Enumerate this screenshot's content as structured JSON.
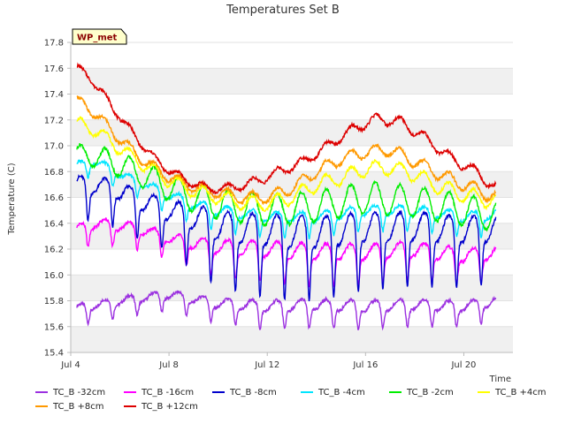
{
  "chart_data": {
    "type": "line",
    "title": "Temperatures Set B",
    "xlabel": "Time",
    "ylabel": "Temperature (C)",
    "station_label": "WP_met",
    "xlim": [
      4,
      22
    ],
    "ylim": [
      15.4,
      17.8
    ],
    "x_ticks": [
      {
        "value": 4,
        "label": "Jul 4"
      },
      {
        "value": 8,
        "label": "Jul 8"
      },
      {
        "value": 12,
        "label": "Jul 12"
      },
      {
        "value": 16,
        "label": "Jul 16"
      },
      {
        "value": 20,
        "label": "Jul 20"
      }
    ],
    "y_ticks": [
      15.4,
      15.6,
      15.8,
      16.0,
      16.2,
      16.4,
      16.6,
      16.8,
      17.0,
      17.2,
      17.4,
      17.6,
      17.8
    ],
    "x_start": 4.25,
    "x_end": 21.3,
    "series": [
      {
        "name": "TC_B -32cm",
        "color": "#9b30e0",
        "base": [
          [
            4.25,
            15.74
          ],
          [
            6,
            15.8
          ],
          [
            8,
            15.85
          ],
          [
            10,
            15.78
          ],
          [
            12,
            15.76
          ],
          [
            14,
            15.77
          ],
          [
            16,
            15.76
          ],
          [
            18,
            15.77
          ],
          [
            20,
            15.76
          ],
          [
            21.3,
            15.8
          ]
        ],
        "amp": [
          [
            4.25,
            0.12
          ],
          [
            8,
            0.12
          ],
          [
            12,
            0.17
          ],
          [
            16,
            0.17
          ],
          [
            21.3,
            0.14
          ]
        ]
      },
      {
        "name": "TC_B -16cm",
        "color": "#ff00ff",
        "base": [
          [
            4.25,
            16.35
          ],
          [
            5,
            16.4
          ],
          [
            6,
            16.38
          ],
          [
            7,
            16.35
          ],
          [
            8,
            16.28
          ],
          [
            10,
            16.22
          ],
          [
            12,
            16.2
          ],
          [
            14,
            16.18
          ],
          [
            16,
            16.18
          ],
          [
            18,
            16.2
          ],
          [
            20,
            16.15
          ],
          [
            21.3,
            16.17
          ]
        ],
        "amp": [
          [
            4.25,
            0.15
          ],
          [
            8,
            0.15
          ],
          [
            10,
            0.22
          ],
          [
            14,
            0.25
          ],
          [
            21.3,
            0.2
          ]
        ]
      },
      {
        "name": "TC_B -8cm",
        "color": "#0000cc",
        "base": [
          [
            4.25,
            16.7
          ],
          [
            5,
            16.7
          ],
          [
            6,
            16.65
          ],
          [
            7,
            16.57
          ],
          [
            8,
            16.5
          ],
          [
            9,
            16.45
          ],
          [
            10,
            16.38
          ],
          [
            12,
            16.35
          ],
          [
            14,
            16.33
          ],
          [
            16,
            16.37
          ],
          [
            18,
            16.38
          ],
          [
            20,
            16.35
          ],
          [
            21.3,
            16.36
          ]
        ],
        "amp": [
          [
            4.25,
            0.25
          ],
          [
            8,
            0.3
          ],
          [
            10,
            0.45
          ],
          [
            13,
            0.5
          ],
          [
            16,
            0.45
          ],
          [
            21.3,
            0.4
          ]
        ]
      },
      {
        "name": "TC_B -4cm",
        "color": "#00e5ff",
        "base": [
          [
            4.25,
            16.85
          ],
          [
            5,
            16.88
          ],
          [
            6,
            16.78
          ],
          [
            7,
            16.7
          ],
          [
            8,
            16.62
          ],
          [
            9,
            16.55
          ],
          [
            10,
            16.5
          ],
          [
            12,
            16.45
          ],
          [
            14,
            16.45
          ],
          [
            16,
            16.5
          ],
          [
            18,
            16.5
          ],
          [
            20,
            16.45
          ],
          [
            21.3,
            16.47
          ]
        ],
        "amp": [
          [
            4.25,
            0.1
          ],
          [
            10,
            0.15
          ],
          [
            21.3,
            0.15
          ]
        ]
      },
      {
        "name": "TC_B -2cm",
        "color": "#00ee00",
        "base": [
          [
            4.25,
            16.93
          ],
          [
            5,
            16.92
          ],
          [
            6,
            16.85
          ],
          [
            7,
            16.77
          ],
          [
            8,
            16.68
          ],
          [
            9,
            16.6
          ],
          [
            10,
            16.55
          ],
          [
            12,
            16.5
          ],
          [
            14,
            16.53
          ],
          [
            16,
            16.6
          ],
          [
            18,
            16.57
          ],
          [
            20,
            16.5
          ],
          [
            21.3,
            16.46
          ]
        ],
        "amp": [
          [
            4.25,
            0.08
          ],
          [
            10,
            0.12
          ],
          [
            21.3,
            0.12
          ]
        ]
      },
      {
        "name": "TC_B +4cm",
        "color": "#ffff00",
        "base": [
          [
            4.25,
            17.17
          ],
          [
            5,
            17.12
          ],
          [
            6,
            16.98
          ],
          [
            7,
            16.85
          ],
          [
            8,
            16.73
          ],
          [
            9,
            16.65
          ],
          [
            10,
            16.6
          ],
          [
            11,
            16.56
          ],
          [
            12,
            16.55
          ],
          [
            13,
            16.6
          ],
          [
            14,
            16.7
          ],
          [
            15,
            16.75
          ],
          [
            16,
            16.82
          ],
          [
            17,
            16.83
          ],
          [
            18,
            16.78
          ],
          [
            19,
            16.68
          ],
          [
            20,
            16.62
          ],
          [
            21.3,
            16.57
          ]
        ],
        "amp": [
          [
            4.25,
            0.05
          ],
          [
            21.3,
            0.06
          ]
        ]
      },
      {
        "name": "TC_B +8cm",
        "color": "#ff9900",
        "base": [
          [
            4.25,
            17.35
          ],
          [
            5,
            17.25
          ],
          [
            6,
            17.05
          ],
          [
            7,
            16.88
          ],
          [
            8,
            16.76
          ],
          [
            9,
            16.68
          ],
          [
            10,
            16.64
          ],
          [
            11,
            16.6
          ],
          [
            12,
            16.6
          ],
          [
            13,
            16.67
          ],
          [
            14,
            16.8
          ],
          [
            15,
            16.9
          ],
          [
            16,
            16.95
          ],
          [
            17,
            16.97
          ],
          [
            18,
            16.88
          ],
          [
            19,
            16.78
          ],
          [
            20,
            16.7
          ],
          [
            21.3,
            16.6
          ]
        ],
        "amp": [
          [
            4.25,
            0.04
          ],
          [
            21.3,
            0.05
          ]
        ]
      },
      {
        "name": "TC_B +12cm",
        "color": "#dd0000",
        "base": [
          [
            4.25,
            17.6
          ],
          [
            4.8,
            17.53
          ],
          [
            5.5,
            17.35
          ],
          [
            6.5,
            17.1
          ],
          [
            7.5,
            16.88
          ],
          [
            8.5,
            16.75
          ],
          [
            9.5,
            16.67
          ],
          [
            10.5,
            16.67
          ],
          [
            11.5,
            16.72
          ],
          [
            12.5,
            16.8
          ],
          [
            13.5,
            16.88
          ],
          [
            14.5,
            17.0
          ],
          [
            15.5,
            17.13
          ],
          [
            16.5,
            17.21
          ],
          [
            17.5,
            17.18
          ],
          [
            18.5,
            17.05
          ],
          [
            19.5,
            16.9
          ],
          [
            20.5,
            16.8
          ],
          [
            21.3,
            16.67
          ]
        ],
        "amp": [
          [
            4.25,
            0.03
          ],
          [
            21.3,
            0.04
          ]
        ]
      }
    ],
    "legend": {
      "placement": "bottom",
      "rows": [
        [
          "TC_B -32cm",
          "TC_B -16cm",
          "TC_B -8cm",
          "TC_B -4cm",
          "TC_B -2cm",
          "TC_B +4cm"
        ],
        [
          "TC_B +8cm",
          "TC_B +12cm"
        ]
      ]
    },
    "colors": {
      "plot_bg": "#ffffff",
      "band_bg": "#ececec",
      "grid_band": "#f0f0f0",
      "axis": "#bbbbbb",
      "station_box_bg": "#ffffcc",
      "station_text": "#8b0000"
    }
  }
}
